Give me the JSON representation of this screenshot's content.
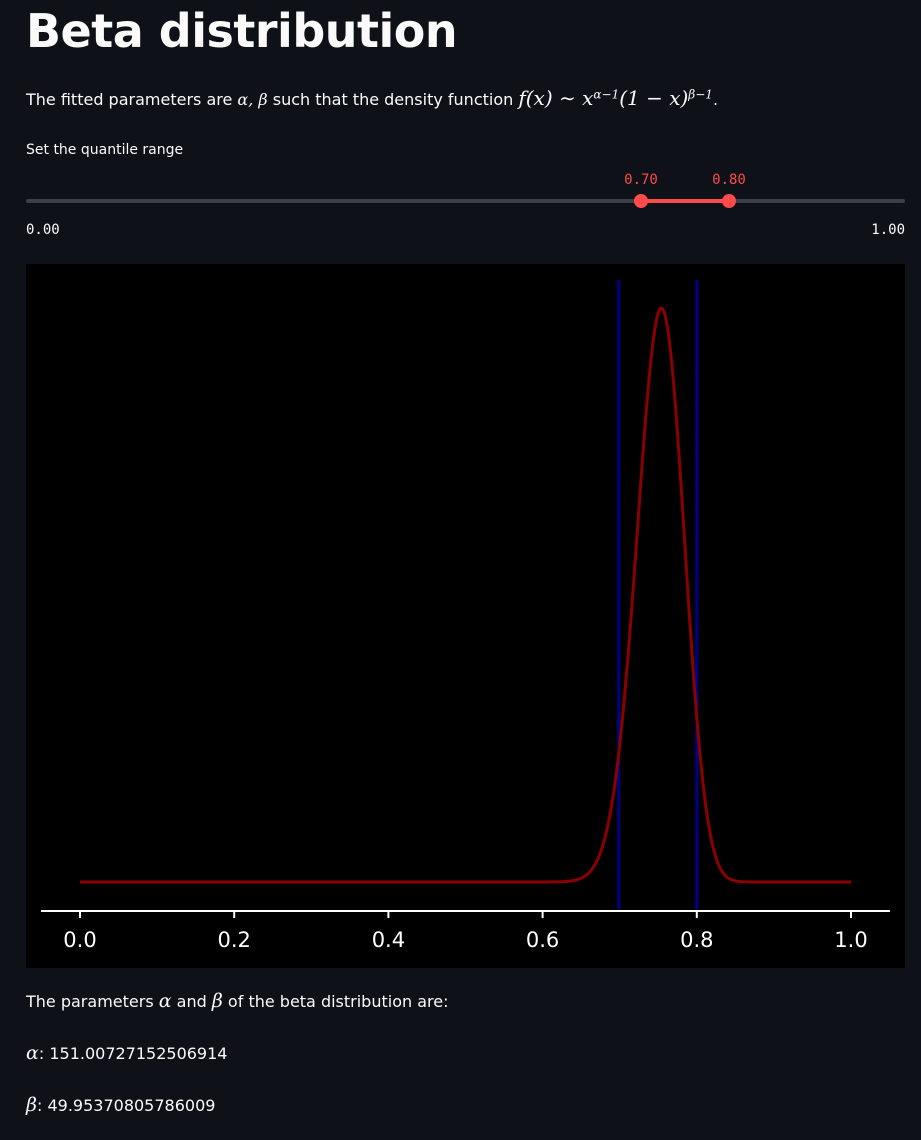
{
  "header": {
    "title": "Beta distribution"
  },
  "description": {
    "prefix": "The fitted parameters are ",
    "alpha_beta": "α, β",
    "middle": " such that the density function ",
    "f_of_x": "f(x)",
    "tilde": " ∼ ",
    "x_base": "x",
    "exp1": "α−1",
    "paren": "(1 − x)",
    "exp2": "β−1",
    "suffix": "."
  },
  "slider": {
    "label": "Set the quantile range",
    "low_value": "0.70",
    "high_value": "0.80",
    "min_label": "0.00",
    "max_label": "1.00",
    "low": 0.7,
    "high": 0.8,
    "min": 0.0,
    "max": 1.0,
    "track_color": "#3b3f4a",
    "accent_color": "#ff4b4b"
  },
  "results": {
    "intro_prefix": "The parameters ",
    "alpha_symbol": "α",
    "and": " and ",
    "beta_symbol": "β",
    "intro_suffix": " of the beta distribution are:",
    "alpha_label": ": ",
    "alpha_value": "151.00727152506914",
    "beta_label": ": ",
    "beta_value": "49.95370805786009"
  },
  "chart_data": {
    "type": "line",
    "title": "",
    "xlabel": "",
    "ylabel": "",
    "xlim": [
      0.0,
      1.0
    ],
    "x_ticks": [
      "0.0",
      "0.2",
      "0.4",
      "0.6",
      "0.8",
      "1.0"
    ],
    "x_tick_values": [
      0.0,
      0.2,
      0.4,
      0.6,
      0.8,
      1.0
    ],
    "grid": false,
    "series": [
      {
        "name": "beta density",
        "color": "#8b0000",
        "distribution": "beta",
        "alpha": 151.00727152506914,
        "beta": 49.95370805786009
      }
    ],
    "vertical_lines": [
      {
        "name": "lower quantile",
        "x": 0.7,
        "color": "#00008b"
      },
      {
        "name": "upper quantile",
        "x": 0.8,
        "color": "#00008b"
      }
    ]
  }
}
